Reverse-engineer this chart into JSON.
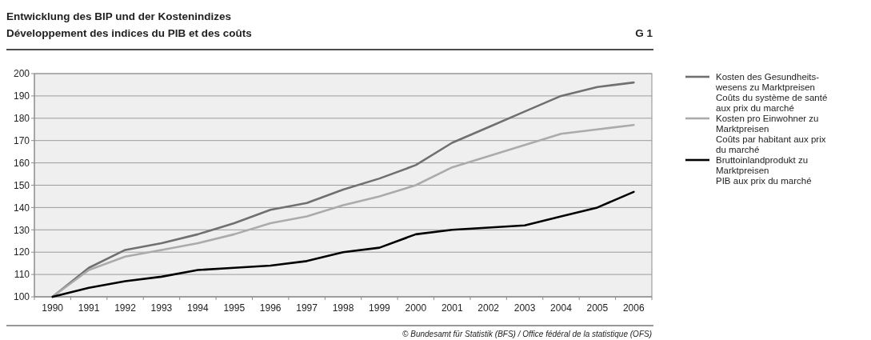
{
  "chart_data": {
    "type": "line",
    "title": "Entwicklung des BIP und der Kostenindizes",
    "subtitle": "Développement des indices du PIB et des coûts",
    "annotations": [
      "G 1",
      "© Bundesamt für Statistik (BFS) / Office fédéral de la statistique (OFS)"
    ],
    "categories": [
      "1990",
      "1991",
      "1992",
      "1993",
      "1994",
      "1995",
      "1996",
      "1997",
      "1998",
      "1999",
      "2000",
      "2001",
      "2002",
      "2003",
      "2004",
      "2005",
      "2006"
    ],
    "series": [
      {
        "name": "Kosten des Gesundheits-\nwesens zu Marktpreisen\nCoûts du système de santé\naux prix du marché",
        "color": "#707070",
        "values": [
          100,
          113,
          121,
          124,
          128,
          133,
          139,
          142,
          148,
          153,
          159,
          169,
          176,
          183,
          190,
          194,
          196
        ]
      },
      {
        "name": "Kosten pro Einwohner zu\nMarktpreisen\nCoûts par habitant aux prix\ndu marché",
        "color": "#ababab",
        "values": [
          100,
          112,
          118,
          121,
          124,
          128,
          133,
          136,
          141,
          145,
          150,
          158,
          163,
          168,
          173,
          175,
          177
        ]
      },
      {
        "name": "Bruttoinlandprodukt zu\nMarktpreisen\nPIB aux prix du marché",
        "color": "#000000",
        "values": [
          100,
          104,
          107,
          109,
          112,
          113,
          114,
          116,
          120,
          122,
          128,
          130,
          131,
          132,
          136,
          140,
          147
        ]
      }
    ],
    "ylim": [
      100,
      200
    ],
    "yticks": [
      100,
      110,
      120,
      130,
      140,
      150,
      160,
      170,
      180,
      190,
      200
    ],
    "grid": "y",
    "legend": "right"
  }
}
